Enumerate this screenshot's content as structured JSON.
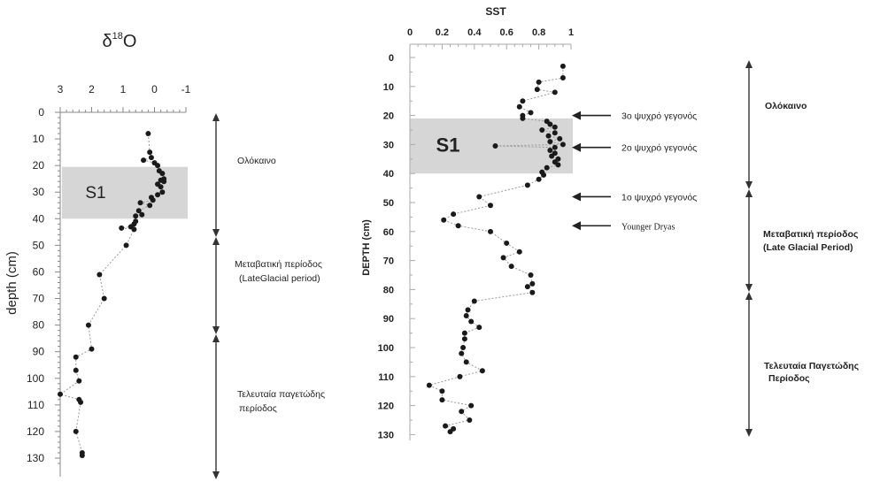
{
  "chart_data": [
    {
      "type": "scatter",
      "title": "δ18O",
      "title_main": "δ",
      "title_sup": "18",
      "title_tail": "O",
      "xlabel": "",
      "ylabel": "depth (cm)",
      "xlim": [
        3,
        -1
      ],
      "x_reversed": true,
      "ylim": [
        0,
        133
      ],
      "y_inverted": true,
      "x_ticks": [
        "3",
        "2",
        "1",
        "0",
        "-1"
      ],
      "y_ticks": [
        "0",
        "10",
        "20",
        "30",
        "40",
        "50",
        "60",
        "70",
        "80",
        "90",
        "100",
        "110",
        "120",
        "130"
      ],
      "shaded_band": {
        "label": "S1",
        "y_range": [
          20.5,
          40
        ]
      },
      "points": [
        {
          "x": 0.2,
          "y": 8
        },
        {
          "x": 0.15,
          "y": 15
        },
        {
          "x": 0.1,
          "y": 17
        },
        {
          "x": 0.35,
          "y": 18
        },
        {
          "x": 0.0,
          "y": 19
        },
        {
          "x": -0.1,
          "y": 20
        },
        {
          "x": -0.15,
          "y": 22
        },
        {
          "x": -0.25,
          "y": 23
        },
        {
          "x": -0.3,
          "y": 25
        },
        {
          "x": -0.2,
          "y": 25.5
        },
        {
          "x": -0.3,
          "y": 26
        },
        {
          "x": -0.1,
          "y": 27
        },
        {
          "x": -0.2,
          "y": 28
        },
        {
          "x": -0.25,
          "y": 30
        },
        {
          "x": -0.1,
          "y": 31
        },
        {
          "x": 0.1,
          "y": 32
        },
        {
          "x": 0.05,
          "y": 33
        },
        {
          "x": 0.45,
          "y": 34
        },
        {
          "x": 0.15,
          "y": 35
        },
        {
          "x": 0.5,
          "y": 37
        },
        {
          "x": 0.4,
          "y": 38.5
        },
        {
          "x": 0.6,
          "y": 39
        },
        {
          "x": 0.6,
          "y": 41
        },
        {
          "x": 0.65,
          "y": 42
        },
        {
          "x": 0.75,
          "y": 43
        },
        {
          "x": 1.05,
          "y": 43.5
        },
        {
          "x": 0.65,
          "y": 44
        },
        {
          "x": 0.9,
          "y": 50
        },
        {
          "x": 1.75,
          "y": 61
        },
        {
          "x": 1.6,
          "y": 70
        },
        {
          "x": 2.1,
          "y": 80
        },
        {
          "x": 2.0,
          "y": 89
        },
        {
          "x": 2.5,
          "y": 92
        },
        {
          "x": 2.5,
          "y": 97
        },
        {
          "x": 2.4,
          "y": 101
        },
        {
          "x": 3.0,
          "y": 106
        },
        {
          "x": 2.4,
          "y": 108
        },
        {
          "x": 2.35,
          "y": 109
        },
        {
          "x": 2.5,
          "y": 120
        },
        {
          "x": 2.3,
          "y": 128
        },
        {
          "x": 2.3,
          "y": 129
        }
      ],
      "zones": [
        {
          "label": "Ολόκαινο",
          "label2": "",
          "y_from": 0,
          "y_to": 44
        },
        {
          "label": "Μεταβατική περίοδος",
          "label2": "(LateGlacial period)",
          "y_from": 44,
          "y_to": 80
        },
        {
          "label": "Τελευταία παγετώδης",
          "label2": "περίοδος",
          "y_from": 80,
          "y_to": 133
        }
      ]
    },
    {
      "type": "scatter",
      "title": "SST",
      "xlabel": "",
      "ylabel": "DEPTH (cm)",
      "xlim": [
        0,
        1
      ],
      "ylim": [
        0,
        132
      ],
      "y_inverted": true,
      "x_ticks": [
        "0",
        "0.2",
        "0.4",
        "0.6",
        "0.8",
        "1"
      ],
      "y_ticks": [
        "0",
        "10",
        "20",
        "30",
        "40",
        "50",
        "60",
        "70",
        "80",
        "90",
        "100",
        "110",
        "120",
        "130"
      ],
      "shaded_band": {
        "label": "S1",
        "y_range": [
          21,
          40
        ]
      },
      "points": [
        {
          "x": 0.95,
          "y": 3
        },
        {
          "x": 0.95,
          "y": 7
        },
        {
          "x": 0.8,
          "y": 8.5
        },
        {
          "x": 0.79,
          "y": 11
        },
        {
          "x": 0.9,
          "y": 12
        },
        {
          "x": 0.7,
          "y": 15
        },
        {
          "x": 0.68,
          "y": 17
        },
        {
          "x": 0.75,
          "y": 19
        },
        {
          "x": 0.7,
          "y": 20
        },
        {
          "x": 0.7,
          "y": 21
        },
        {
          "x": 0.85,
          "y": 22
        },
        {
          "x": 0.87,
          "y": 23
        },
        {
          "x": 0.9,
          "y": 24
        },
        {
          "x": 0.82,
          "y": 25
        },
        {
          "x": 0.9,
          "y": 26
        },
        {
          "x": 0.86,
          "y": 27
        },
        {
          "x": 0.93,
          "y": 28
        },
        {
          "x": 0.87,
          "y": 29
        },
        {
          "x": 0.95,
          "y": 30
        },
        {
          "x": 0.53,
          "y": 30.5
        },
        {
          "x": 0.9,
          "y": 31
        },
        {
          "x": 0.87,
          "y": 32
        },
        {
          "x": 0.9,
          "y": 33
        },
        {
          "x": 0.88,
          "y": 34
        },
        {
          "x": 0.92,
          "y": 35
        },
        {
          "x": 0.9,
          "y": 36
        },
        {
          "x": 0.92,
          "y": 37
        },
        {
          "x": 0.85,
          "y": 38
        },
        {
          "x": 0.82,
          "y": 39.5
        },
        {
          "x": 0.83,
          "y": 40.5
        },
        {
          "x": 0.8,
          "y": 42
        },
        {
          "x": 0.73,
          "y": 44
        },
        {
          "x": 0.43,
          "y": 48
        },
        {
          "x": 0.5,
          "y": 51
        },
        {
          "x": 0.27,
          "y": 54
        },
        {
          "x": 0.21,
          "y": 56
        },
        {
          "x": 0.3,
          "y": 58
        },
        {
          "x": 0.5,
          "y": 60
        },
        {
          "x": 0.6,
          "y": 64
        },
        {
          "x": 0.68,
          "y": 67
        },
        {
          "x": 0.58,
          "y": 69
        },
        {
          "x": 0.63,
          "y": 72
        },
        {
          "x": 0.75,
          "y": 75
        },
        {
          "x": 0.76,
          "y": 78
        },
        {
          "x": 0.73,
          "y": 79
        },
        {
          "x": 0.76,
          "y": 81
        },
        {
          "x": 0.4,
          "y": 84
        },
        {
          "x": 0.36,
          "y": 87
        },
        {
          "x": 0.35,
          "y": 89
        },
        {
          "x": 0.38,
          "y": 91
        },
        {
          "x": 0.43,
          "y": 93
        },
        {
          "x": 0.34,
          "y": 95
        },
        {
          "x": 0.34,
          "y": 97
        },
        {
          "x": 0.33,
          "y": 100
        },
        {
          "x": 0.32,
          "y": 102
        },
        {
          "x": 0.35,
          "y": 105
        },
        {
          "x": 0.45,
          "y": 108
        },
        {
          "x": 0.31,
          "y": 110
        },
        {
          "x": 0.12,
          "y": 113
        },
        {
          "x": 0.2,
          "y": 115
        },
        {
          "x": 0.2,
          "y": 118
        },
        {
          "x": 0.38,
          "y": 120
        },
        {
          "x": 0.32,
          "y": 122
        },
        {
          "x": 0.37,
          "y": 125
        },
        {
          "x": 0.22,
          "y": 127
        },
        {
          "x": 0.27,
          "y": 128
        },
        {
          "x": 0.25,
          "y": 129
        }
      ],
      "events": [
        {
          "label": "3ο ψυχρό γεγονός",
          "y": 20,
          "serif": false
        },
        {
          "label": "2ο ψυχρό γεγονός",
          "y": 31,
          "serif": false
        },
        {
          "label": "1ο ψυχρό γεγονός",
          "y": 48,
          "serif": false
        },
        {
          "label": "Younger Dryas",
          "y": 58,
          "serif": true
        }
      ],
      "zones": [
        {
          "label": "Ολόκαινο",
          "label2": "",
          "y_from": 0,
          "y_to": 47
        },
        {
          "label": "Μεταβατική περίοδος",
          "label2": "(Late Glacial Period)",
          "y_from": 47,
          "y_to": 82
        },
        {
          "label": "Τελευταία Παγετώδης",
          "label2": "Περίοδος",
          "y_from": 82,
          "y_to": 130
        }
      ]
    }
  ]
}
